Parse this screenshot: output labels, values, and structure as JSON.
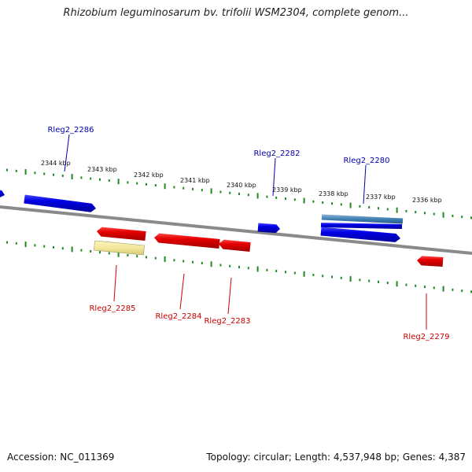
{
  "title": "Rhizobium leguminosarum bv. trifolii WSM2304, complete genom...",
  "footer": {
    "accession": "Accession: NC_011369",
    "summary": "Topology: circular; Length: 4,537,948 bp; Genes: 4,387"
  },
  "colors": {
    "forward_gene": "#0000dd",
    "reverse_gene": "#e60000",
    "pseudo_gene": "#f3e89a",
    "rna_gene": "#3f7fb3",
    "backbone": "#8a8a8a",
    "tick": "#1f8a1f",
    "forward_label": "#0000aa",
    "reverse_label": "#cc0000"
  },
  "kbp_ticks": [
    {
      "label": "2344 kbp"
    },
    {
      "label": "2343 kbp"
    },
    {
      "label": "2342 kbp"
    },
    {
      "label": "2341 kbp"
    },
    {
      "label": "2340 kbp"
    },
    {
      "label": "2339 kbp"
    },
    {
      "label": "2338 kbp"
    },
    {
      "label": "2337 kbp"
    },
    {
      "label": "2336 kbp"
    }
  ],
  "forward_genes": [
    {
      "kind": "cds"
    },
    {
      "kind": "cds"
    },
    {
      "kind": "cds"
    },
    {
      "kind": "rna"
    },
    {
      "kind": "cds"
    },
    {
      "kind": "cds"
    }
  ],
  "reverse_genes": [
    {
      "kind": "cds"
    },
    {
      "kind": "pseudo"
    },
    {
      "kind": "cds"
    },
    {
      "kind": "cds"
    },
    {
      "kind": "cds"
    }
  ],
  "gene_labels": [
    {
      "text": "Rleg2_2286",
      "strand": "forward"
    },
    {
      "text": "Rleg2_2282",
      "strand": "forward"
    },
    {
      "text": "Rleg2_2280",
      "strand": "forward"
    },
    {
      "text": "Rleg2_2285",
      "strand": "reverse"
    },
    {
      "text": "Rleg2_2284",
      "strand": "reverse"
    },
    {
      "text": "Rleg2_2283",
      "strand": "reverse"
    },
    {
      "text": "Rleg2_2279",
      "strand": "reverse"
    }
  ]
}
